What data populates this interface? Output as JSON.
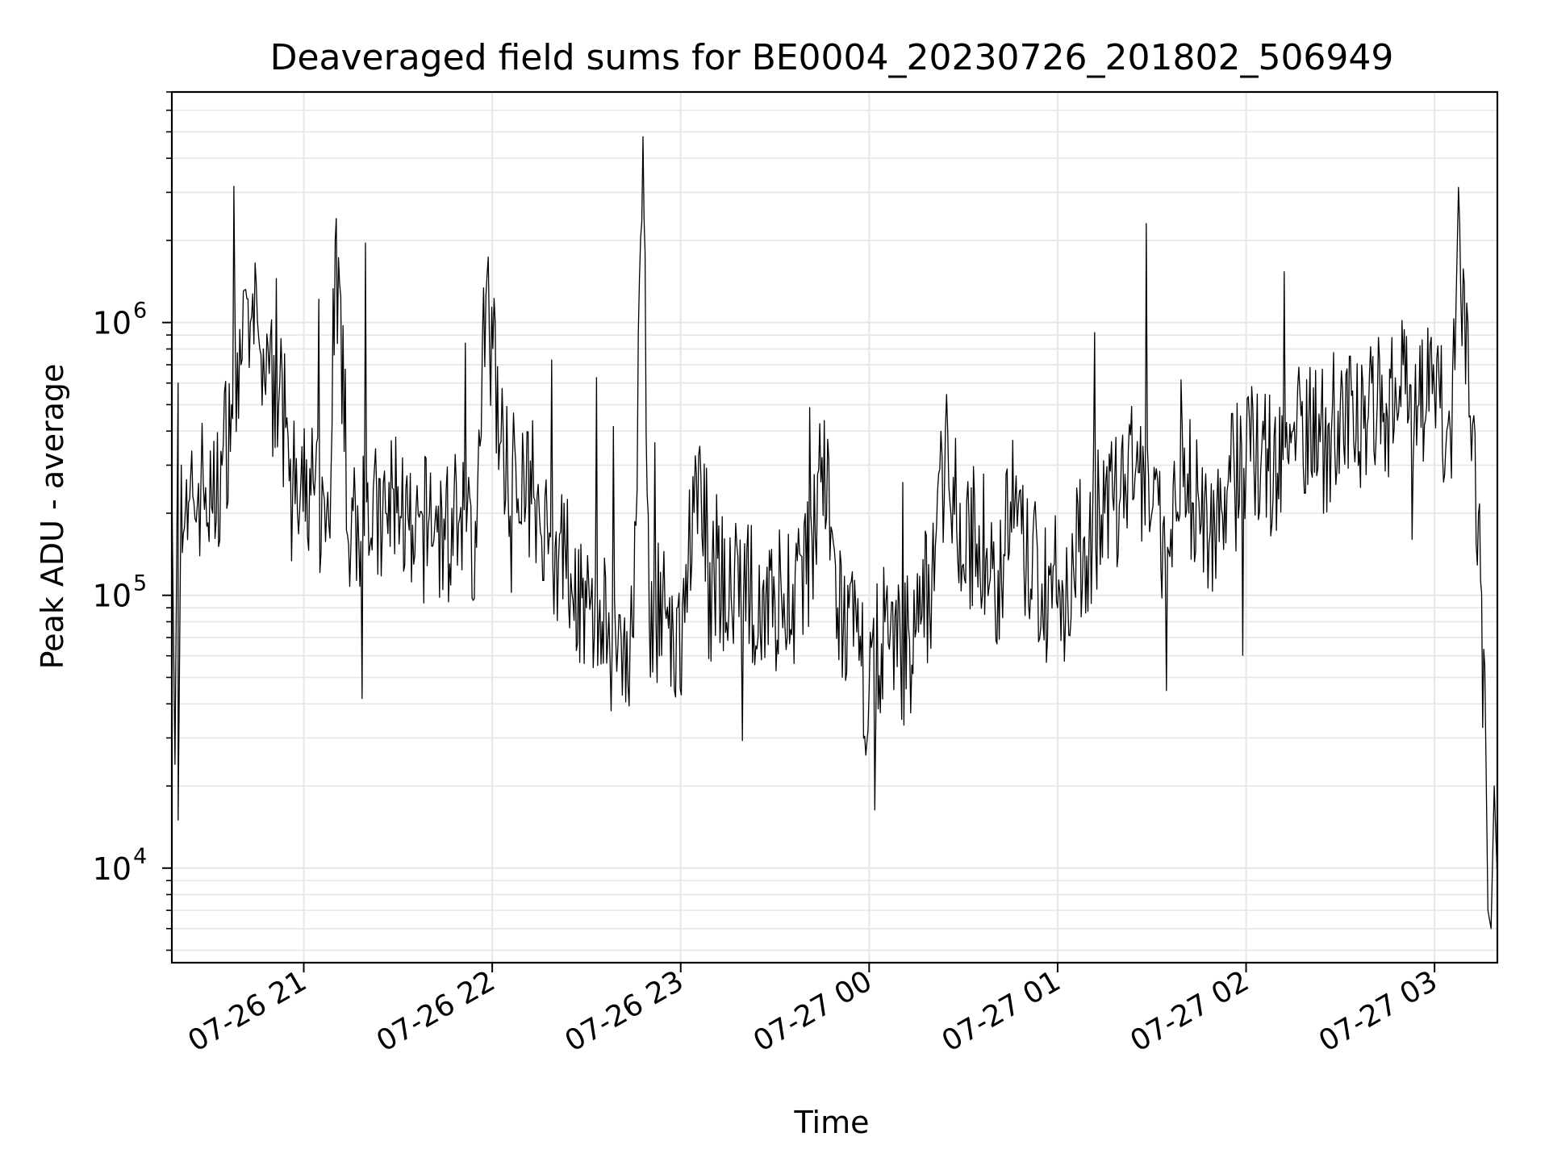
{
  "chart_data": {
    "type": "line",
    "title": "Deaveraged field sums for BE0004_20230726_201802_506949",
    "xlabel": "Time",
    "ylabel": "Peak ADU - average",
    "yscale": "log",
    "ylim": [
      4500,
      7000000
    ],
    "xlim": [
      "2023-07-26 20:18",
      "2023-07-27 03:20"
    ],
    "grid": true,
    "line_color": "#000000",
    "grid_color": "#e6e6e6",
    "xticks": [
      {
        "value": "2023-07-26 21:00",
        "label": "07-26 21"
      },
      {
        "value": "2023-07-26 22:00",
        "label": "07-26 22"
      },
      {
        "value": "2023-07-26 23:00",
        "label": "07-26 23"
      },
      {
        "value": "2023-07-27 00:00",
        "label": "07-27 00"
      },
      {
        "value": "2023-07-27 01:00",
        "label": "07-27 01"
      },
      {
        "value": "2023-07-27 02:00",
        "label": "07-27 02"
      },
      {
        "value": "2023-07-27 03:00",
        "label": "07-27 03"
      }
    ],
    "yticks": [
      {
        "value": 10000,
        "base": "10",
        "exp": "4"
      },
      {
        "value": 100000,
        "base": "10",
        "exp": "5"
      },
      {
        "value": 1000000,
        "base": "10",
        "exp": "6"
      }
    ],
    "series": [
      {
        "points": [
          [
            "2023-07-26 20:18",
            250000
          ],
          [
            "2023-07-26 20:19",
            24000
          ],
          [
            "2023-07-26 20:20",
            600000
          ],
          [
            "2023-07-26 20:20",
            15000
          ],
          [
            "2023-07-26 20:21",
            300000
          ],
          [
            "2023-07-26 20:23",
            160000
          ],
          [
            "2023-07-26 20:25",
            220000
          ],
          [
            "2023-07-26 20:28",
            260000
          ],
          [
            "2023-07-26 20:31",
            200000
          ],
          [
            "2023-07-26 20:34",
            300000
          ],
          [
            "2023-07-26 20:37",
            500000
          ],
          [
            "2023-07-26 20:40",
            700000
          ],
          [
            "2023-07-26 20:43",
            1000000
          ],
          [
            "2023-07-26 20:46",
            800000
          ],
          [
            "2023-07-26 20:49",
            650000
          ],
          [
            "2023-07-26 20:52",
            500000
          ],
          [
            "2023-07-26 20:55",
            380000
          ],
          [
            "2023-07-26 20:58",
            200000
          ],
          [
            "2023-07-26 21:03",
            260000
          ],
          [
            "2023-07-26 21:08",
            180000
          ],
          [
            "2023-07-26 21:10",
            2000000
          ],
          [
            "2023-07-26 21:15",
            150000
          ],
          [
            "2023-07-26 21:20",
            220000
          ],
          [
            "2023-07-26 21:25",
            170000
          ],
          [
            "2023-07-26 21:30",
            250000
          ],
          [
            "2023-07-26 21:35",
            130000
          ],
          [
            "2023-07-26 21:40",
            200000
          ],
          [
            "2023-07-26 21:45",
            160000
          ],
          [
            "2023-07-26 21:50",
            210000
          ],
          [
            "2023-07-26 21:55",
            150000
          ],
          [
            "2023-07-26 21:58",
            1250000
          ],
          [
            "2023-07-26 22:05",
            250000
          ],
          [
            "2023-07-26 22:10",
            300000
          ],
          [
            "2023-07-26 22:15",
            200000
          ],
          [
            "2023-07-26 22:20",
            150000
          ],
          [
            "2023-07-26 22:25",
            120000
          ],
          [
            "2023-07-26 22:30",
            90000
          ],
          [
            "2023-07-26 22:35",
            80000
          ],
          [
            "2023-07-26 22:40",
            65000
          ],
          [
            "2023-07-26 22:45",
            70000
          ],
          [
            "2023-07-26 22:48",
            4800000
          ],
          [
            "2023-07-26 22:50",
            80000
          ],
          [
            "2023-07-26 22:55",
            90000
          ],
          [
            "2023-07-26 22:58",
            45000
          ],
          [
            "2023-07-26 23:05",
            280000
          ],
          [
            "2023-07-26 23:10",
            130000
          ],
          [
            "2023-07-26 23:20",
            100000
          ],
          [
            "2023-07-26 23:30",
            95000
          ],
          [
            "2023-07-26 23:40",
            110000
          ],
          [
            "2023-07-26 23:45",
            320000
          ],
          [
            "2023-07-26 23:50",
            90000
          ],
          [
            "2023-07-26 23:55",
            65000
          ],
          [
            "2023-07-27 00:00",
            45000
          ],
          [
            "2023-07-27 00:05",
            80000
          ],
          [
            "2023-07-27 00:10",
            60000
          ],
          [
            "2023-07-27 00:15",
            75000
          ],
          [
            "2023-07-27 00:20",
            120000
          ],
          [
            "2023-07-27 00:25",
            400000
          ],
          [
            "2023-07-27 00:30",
            130000
          ],
          [
            "2023-07-27 00:35",
            180000
          ],
          [
            "2023-07-27 00:40",
            100000
          ],
          [
            "2023-07-27 00:45",
            220000
          ],
          [
            "2023-07-27 00:50",
            130000
          ],
          [
            "2023-07-27 00:55",
            110000
          ],
          [
            "2023-07-27 01:00",
            90000
          ],
          [
            "2023-07-27 01:05",
            130000
          ],
          [
            "2023-07-27 01:10",
            160000
          ],
          [
            "2023-07-27 01:15",
            200000
          ],
          [
            "2023-07-27 01:20",
            230000
          ],
          [
            "2023-07-27 01:25",
            300000
          ],
          [
            "2023-07-27 01:30",
            200000
          ],
          [
            "2023-07-27 01:35",
            150000
          ],
          [
            "2023-07-27 01:40",
            250000
          ],
          [
            "2023-07-27 01:45",
            220000
          ],
          [
            "2023-07-27 01:50",
            180000
          ],
          [
            "2023-07-27 01:55",
            260000
          ],
          [
            "2023-07-27 02:00",
            300000
          ],
          [
            "2023-07-27 02:05",
            350000
          ],
          [
            "2023-07-27 02:10",
            280000
          ],
          [
            "2023-07-27 02:15",
            400000
          ],
          [
            "2023-07-27 02:20",
            450000
          ],
          [
            "2023-07-27 02:25",
            350000
          ],
          [
            "2023-07-27 02:30",
            500000
          ],
          [
            "2023-07-27 02:35",
            380000
          ],
          [
            "2023-07-27 02:40",
            600000
          ],
          [
            "2023-07-27 02:45",
            450000
          ],
          [
            "2023-07-27 02:50",
            700000
          ],
          [
            "2023-07-27 02:55",
            500000
          ],
          [
            "2023-07-27 03:00",
            550000
          ],
          [
            "2023-07-27 03:05",
            400000
          ],
          [
            "2023-07-27 03:08",
            2300000
          ],
          [
            "2023-07-27 03:11",
            450000
          ],
          [
            "2023-07-27 03:14",
            200000
          ],
          [
            "2023-07-27 03:16",
            55000
          ],
          [
            "2023-07-27 03:17",
            7000
          ],
          [
            "2023-07-27 03:18",
            6000
          ],
          [
            "2023-07-27 03:19",
            20000
          ],
          [
            "2023-07-27 03:20",
            9000
          ]
        ]
      }
    ]
  }
}
